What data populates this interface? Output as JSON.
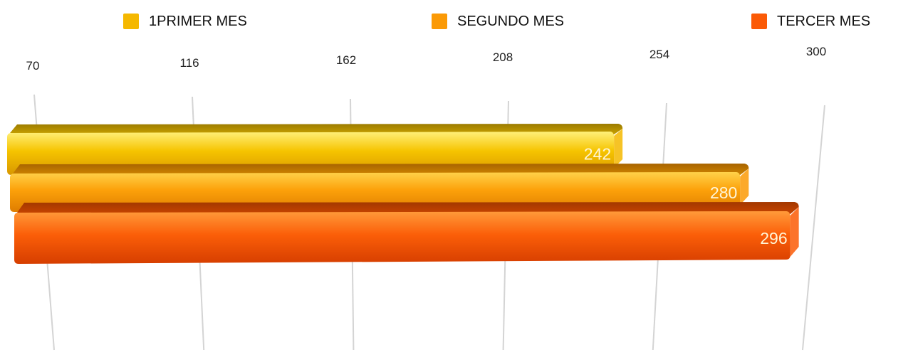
{
  "chart_data": {
    "type": "bar",
    "orientation": "horizontal",
    "style": "3d",
    "x_ticks": [
      "70",
      "116",
      "162",
      "208",
      "254",
      "300"
    ],
    "xlim": [
      70,
      300
    ],
    "grid": true,
    "legend_position": "top",
    "series": [
      {
        "name": "1PRIMER MES",
        "value": 242,
        "value_label": "242",
        "color": "#f5b800"
      },
      {
        "name": "SEGUNDO MES",
        "value": 280,
        "value_label": "280",
        "color": "#fb9a06"
      },
      {
        "name": "TERCER MES",
        "value": 296,
        "value_label": "296",
        "color": "#fb5a06"
      }
    ]
  }
}
